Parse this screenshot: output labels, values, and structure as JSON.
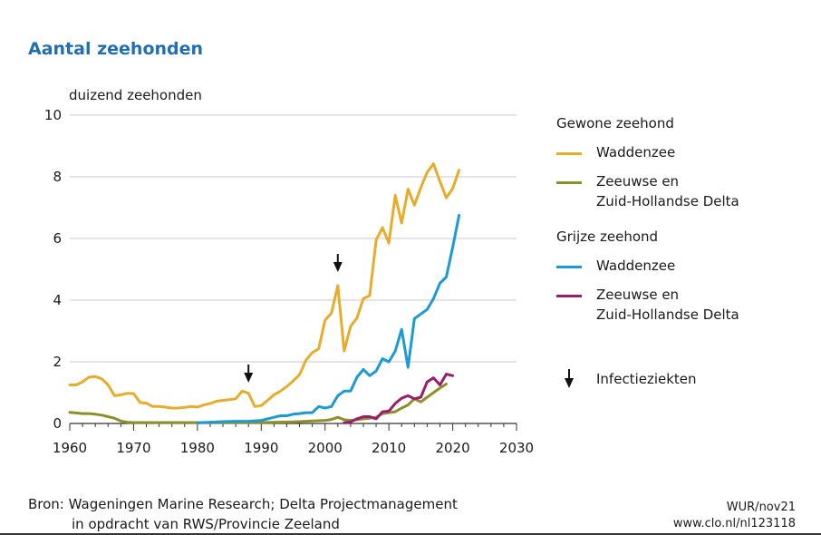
{
  "title": "Aantal zeehonden",
  "chart_data": {
    "type": "line",
    "ylabel": "duizend zeehonden",
    "xlim": [
      1960,
      2030
    ],
    "ylim": [
      0,
      10
    ],
    "xticks": [
      1960,
      1970,
      1980,
      1990,
      2000,
      2010,
      2020,
      2030
    ],
    "yticks": [
      0,
      2,
      4,
      6,
      8,
      10
    ],
    "grid": true,
    "legend_position": "right",
    "groups": [
      {
        "name": "Gewone zeehond",
        "series_indices": [
          0,
          1
        ]
      },
      {
        "name": "Grijze zeehond",
        "series_indices": [
          2,
          3
        ]
      }
    ],
    "series": [
      {
        "name": "Waddenzee",
        "group": "Gewone zeehond",
        "color": "#e8ac2b",
        "x": [
          1960,
          1961,
          1962,
          1963,
          1964,
          1965,
          1966,
          1967,
          1968,
          1969,
          1970,
          1971,
          1972,
          1973,
          1974,
          1975,
          1976,
          1977,
          1978,
          1979,
          1980,
          1981,
          1982,
          1983,
          1984,
          1985,
          1986,
          1987,
          1988,
          1989,
          1990,
          1991,
          1992,
          1993,
          1994,
          1995,
          1996,
          1997,
          1998,
          1999,
          2000,
          2001,
          2002,
          2003,
          2004,
          2005,
          2006,
          2007,
          2008,
          2009,
          2010,
          2011,
          2012,
          2013,
          2014,
          2015,
          2016,
          2017,
          2018,
          2019,
          2020,
          2021
        ],
        "y": [
          1.25,
          1.25,
          1.35,
          1.5,
          1.52,
          1.45,
          1.25,
          0.9,
          0.93,
          0.98,
          0.97,
          0.68,
          0.66,
          0.55,
          0.55,
          0.53,
          0.5,
          0.5,
          0.52,
          0.55,
          0.53,
          0.6,
          0.65,
          0.72,
          0.75,
          0.77,
          0.8,
          1.05,
          0.98,
          0.55,
          0.58,
          0.75,
          0.93,
          1.05,
          1.2,
          1.38,
          1.58,
          2.05,
          2.3,
          2.42,
          3.35,
          3.58,
          4.47,
          2.35,
          3.15,
          3.42,
          4.05,
          4.15,
          5.95,
          6.35,
          5.85,
          7.4,
          6.5,
          7.6,
          7.08,
          7.65,
          8.15,
          8.42,
          7.85,
          7.32,
          7.62,
          8.22
        ]
      },
      {
        "name": "Zeeuwse en Zuid-Hollandse Delta",
        "group": "Gewone zeehond",
        "color": "#8f8f28",
        "x": [
          1960,
          1961,
          1962,
          1963,
          1964,
          1965,
          1966,
          1967,
          1968,
          1969,
          1970,
          1975,
          1980,
          1985,
          1990,
          1995,
          2000,
          2001,
          2002,
          2003,
          2004,
          2005,
          2006,
          2007,
          2008,
          2009,
          2010,
          2011,
          2012,
          2013,
          2014,
          2015,
          2016,
          2017,
          2018,
          2019
        ],
        "y": [
          0.36,
          0.34,
          0.32,
          0.32,
          0.3,
          0.27,
          0.22,
          0.17,
          0.08,
          0.04,
          0.03,
          0.03,
          0.03,
          0.03,
          0.03,
          0.05,
          0.1,
          0.13,
          0.2,
          0.12,
          0.1,
          0.12,
          0.15,
          0.17,
          0.2,
          0.32,
          0.35,
          0.38,
          0.5,
          0.6,
          0.8,
          0.7,
          0.85,
          1.0,
          1.15,
          1.28
        ]
      },
      {
        "name": "Waddenzee",
        "group": "Grijze zeehond",
        "color": "#1b9ad6",
        "x": [
          1980,
          1982,
          1984,
          1986,
          1988,
          1990,
          1991,
          1992,
          1993,
          1994,
          1995,
          1996,
          1997,
          1998,
          1999,
          2000,
          2001,
          2002,
          2003,
          2004,
          2005,
          2006,
          2007,
          2008,
          2009,
          2010,
          2011,
          2012,
          2013,
          2014,
          2015,
          2016,
          2017,
          2018,
          2019,
          2020,
          2021
        ],
        "y": [
          0.02,
          0.04,
          0.06,
          0.07,
          0.07,
          0.1,
          0.15,
          0.2,
          0.25,
          0.25,
          0.3,
          0.32,
          0.35,
          0.35,
          0.55,
          0.5,
          0.55,
          0.9,
          1.05,
          1.05,
          1.5,
          1.75,
          1.55,
          1.7,
          2.1,
          2.0,
          2.35,
          3.05,
          1.82,
          3.4,
          3.55,
          3.7,
          4.05,
          4.55,
          4.75,
          5.72,
          6.75
        ]
      },
      {
        "name": "Zeeuwse en Zuid-Hollandse Delta",
        "group": "Grijze zeehond",
        "color": "#9b1b6f",
        "x": [
          2003,
          2004,
          2005,
          2006,
          2007,
          2008,
          2009,
          2010,
          2011,
          2012,
          2013,
          2014,
          2015,
          2016,
          2017,
          2018,
          2019,
          2020
        ],
        "y": [
          0.02,
          0.05,
          0.15,
          0.22,
          0.22,
          0.15,
          0.38,
          0.4,
          0.65,
          0.82,
          0.9,
          0.8,
          0.85,
          1.35,
          1.48,
          1.25,
          1.6,
          1.55
        ]
      }
    ],
    "annotations": [
      {
        "label": "Infectieziekten",
        "years": [
          1988,
          2002
        ],
        "marker": "arrow-down"
      }
    ]
  },
  "legend": {
    "group1": "Gewone zeehond",
    "item1": "Waddenzee",
    "item2_line1": "Zeeuwse en",
    "item2_line2": "Zuid-Hollandse Delta",
    "group2": "Grijze zeehond",
    "item3": "Waddenzee",
    "item4_line1": "Zeeuwse en",
    "item4_line2": "Zuid-Hollandse Delta",
    "annotation": "Infectieziekten"
  },
  "source": {
    "line1": "Bron: Wageningen Marine Research; Delta Projectmanagement",
    "line2": "in opdracht van RWS/Provincie Zeeland"
  },
  "credit": {
    "line1": "WUR/nov21",
    "line2": "www.clo.nl/nl123118"
  }
}
